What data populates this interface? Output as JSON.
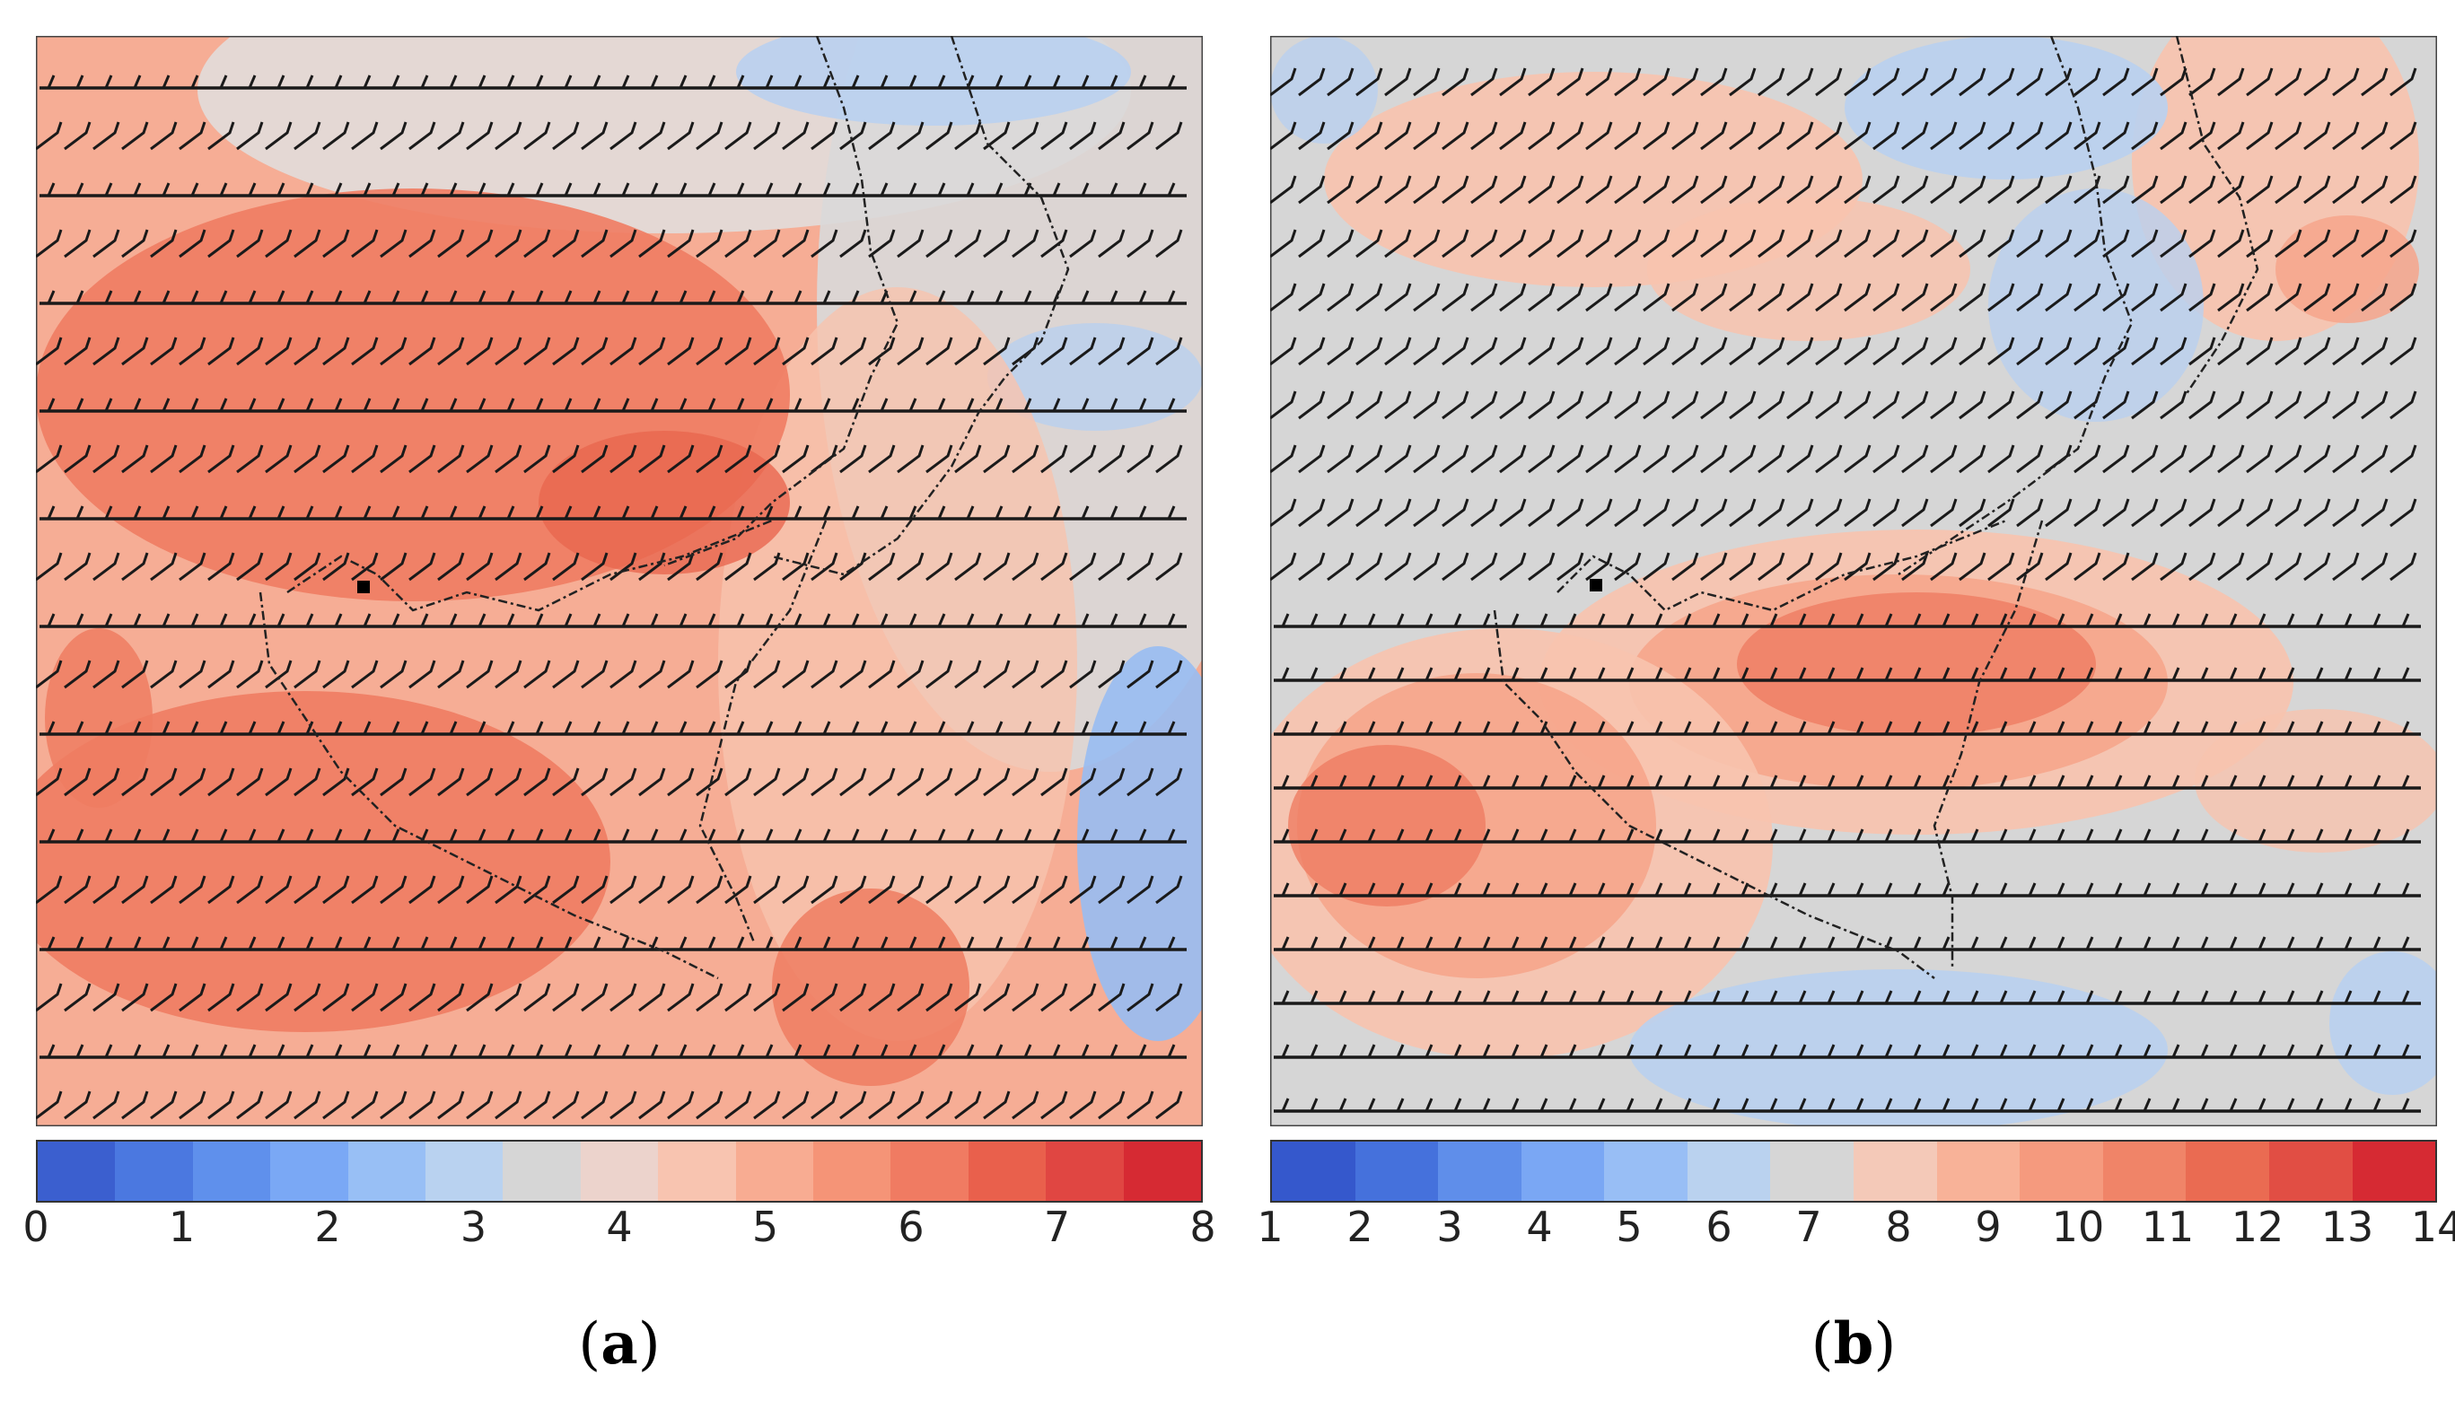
{
  "panels": [
    {
      "id": "a",
      "label_open": "(",
      "label_letter": "a",
      "label_close": ")",
      "colorbar": {
        "colors": [
          "#3b5fcf",
          "#4b78e0",
          "#5f90ec",
          "#7aa8f5",
          "#98bff5",
          "#b9d2f0",
          "#d6d6d6",
          "#ecd3cc",
          "#f8c4b0",
          "#f8ac92",
          "#f59477",
          "#f07b62",
          "#e9604c",
          "#e04642",
          "#d62a33"
        ],
        "ticks": [
          "0",
          "1",
          "2",
          "3",
          "4",
          "5",
          "6",
          "7",
          "8"
        ]
      },
      "field_colors": {
        "background": "#f6ad95",
        "strong": "#ef7c62",
        "stronger": "#e9674f",
        "mid": "#f8c3ae",
        "neutral": "#e3dad7",
        "gray": "#d9d9d9",
        "light_blue": "#b9d0ef",
        "blue": "#98bdf2"
      }
    },
    {
      "id": "b",
      "label_open": "(",
      "label_letter": "b",
      "label_close": ")",
      "colorbar": {
        "colors": [
          "#3558cc",
          "#4571dc",
          "#5f8eea",
          "#7aa7f4",
          "#98bef5",
          "#bad2ef",
          "#d6d6d6",
          "#f4c9b8",
          "#f8b298",
          "#f59a7e",
          "#f08468",
          "#ea6b52",
          "#e14e44",
          "#d62a33"
        ],
        "ticks": [
          "1",
          "2",
          "3",
          "4",
          "5",
          "6",
          "7",
          "8",
          "9",
          "10",
          "11",
          "12",
          "13",
          "14"
        ]
      },
      "field_colors": {
        "background": "#d6d6d6",
        "pink": "#f8c3ae",
        "salmon": "#f6a58b",
        "strong": "#ef7c62",
        "light_blue": "#b9d0ef",
        "blue": "#98bdf2"
      }
    }
  ]
}
